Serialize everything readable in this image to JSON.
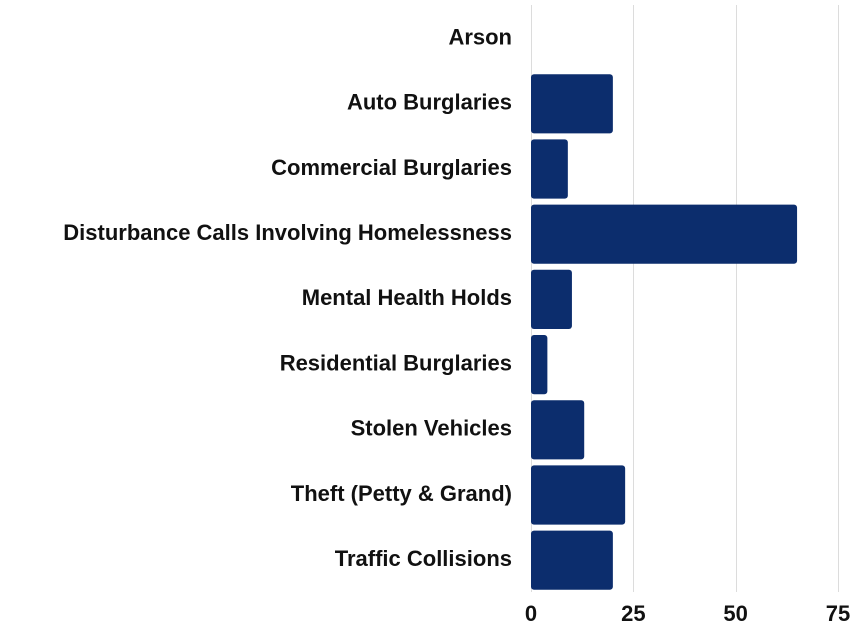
{
  "chart_data": {
    "type": "bar",
    "orientation": "horizontal",
    "categories": [
      "Arson",
      "Auto Burglaries",
      "Commercial Burglaries",
      "Disturbance Calls Involving Homelessness",
      "Mental Health Holds",
      "Residential Burglaries",
      "Stolen Vehicles",
      "Theft (Petty & Grand)",
      "Traffic Collisions"
    ],
    "values": [
      0,
      20,
      9,
      65,
      10,
      4,
      13,
      23,
      20
    ],
    "xlim": [
      0,
      75
    ],
    "xticks": [
      0,
      25,
      50,
      75
    ],
    "xtick_labels": [
      "0",
      "25",
      "50",
      "75"
    ],
    "grid": "vertical",
    "legend": "none",
    "colors": {
      "bar": "#0c2d6d",
      "grid": "#dcdcdc",
      "text": "#111111"
    }
  }
}
